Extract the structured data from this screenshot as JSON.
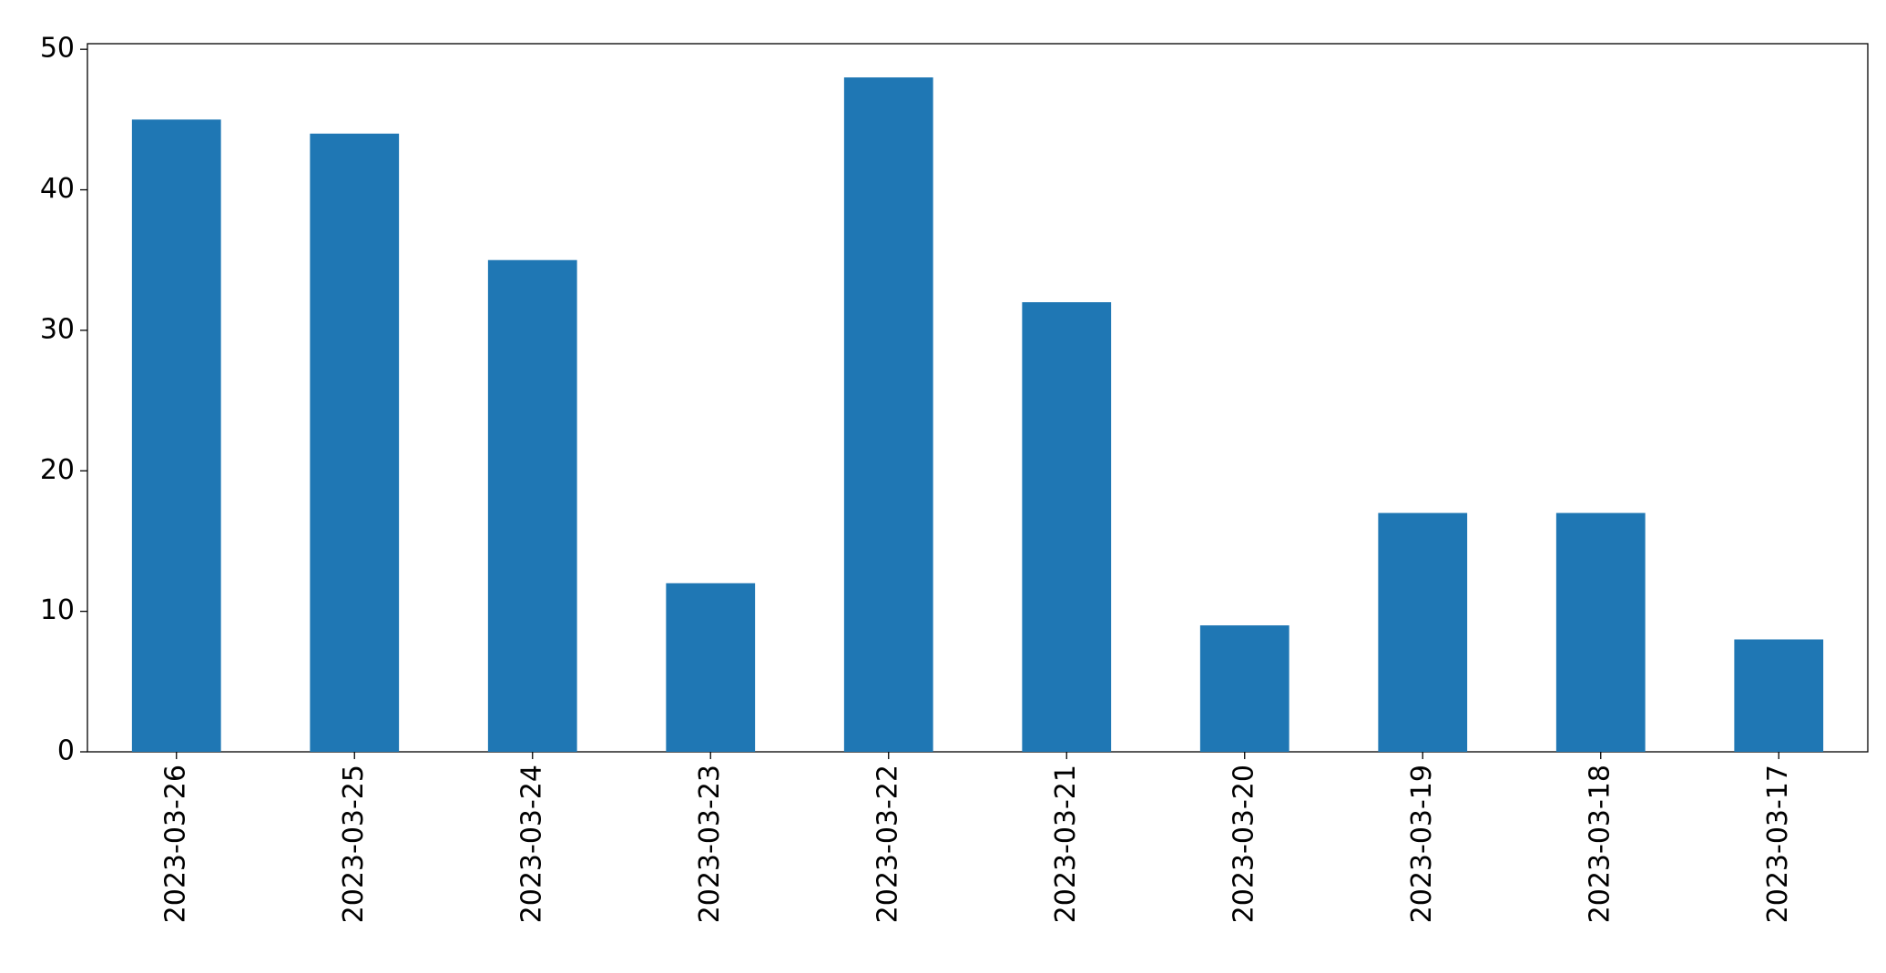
{
  "chart_data": {
    "type": "bar",
    "categories": [
      "2023-03-26",
      "2023-03-25",
      "2023-03-24",
      "2023-03-23",
      "2023-03-22",
      "2023-03-21",
      "2023-03-20",
      "2023-03-19",
      "2023-03-18",
      "2023-03-17"
    ],
    "values": [
      45,
      44,
      35,
      12,
      48,
      32,
      9,
      17,
      17,
      8
    ],
    "color": "#1f77b4",
    "ylim": [
      0,
      50.4
    ],
    "yticks": [
      0,
      10,
      20,
      30,
      40,
      50
    ],
    "grid": false
  }
}
